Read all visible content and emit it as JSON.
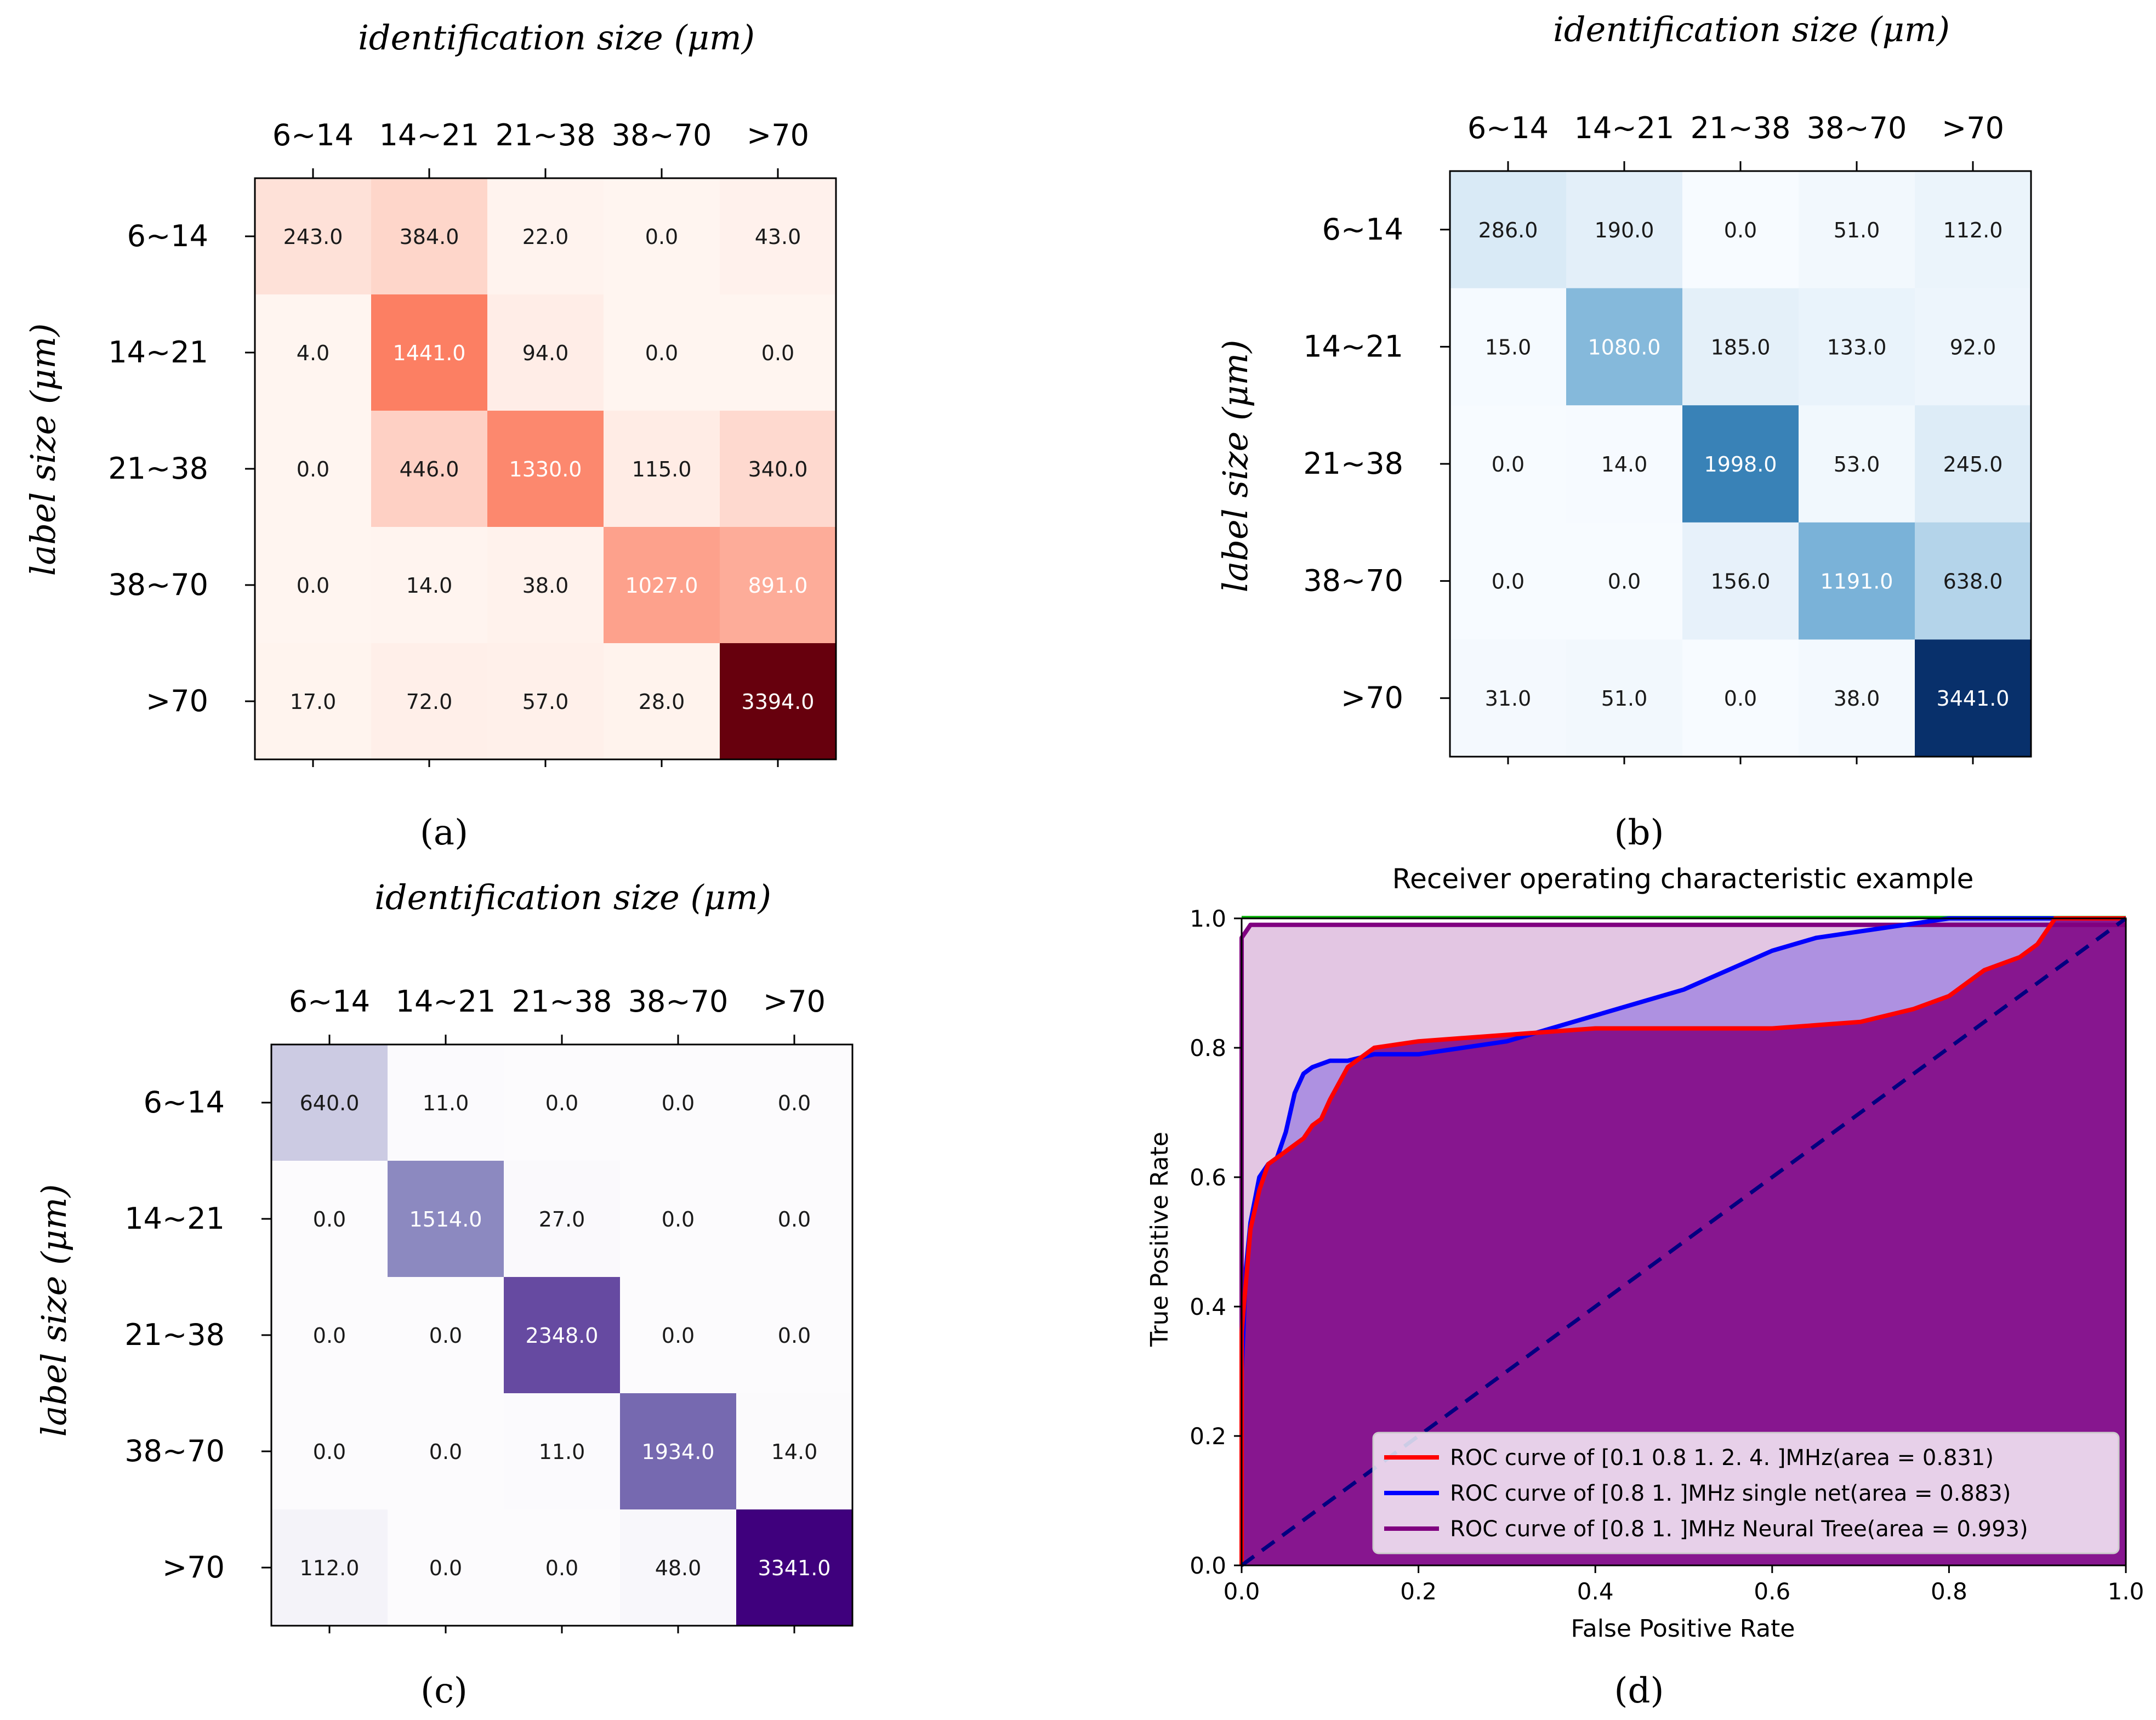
{
  "chart_data": [
    {
      "type": "heatmap",
      "panel_label": "(a)",
      "title": "identification size (μm)",
      "xlabel": "identification size (μm)",
      "ylabel": "label size (μm)",
      "categories": [
        "6~14",
        "14~21",
        "21~38",
        "38~70",
        ">70"
      ],
      "colormap": "Reds",
      "colors": {
        "low": "#fff5f0",
        "mid": "#fb6a4a",
        "high": "#67000d"
      },
      "matrix": [
        [
          243.0,
          384.0,
          22.0,
          0.0,
          43.0
        ],
        [
          4.0,
          1441.0,
          94.0,
          0.0,
          0.0
        ],
        [
          0.0,
          446.0,
          1330.0,
          115.0,
          340.0
        ],
        [
          0.0,
          14.0,
          38.0,
          1027.0,
          891.0
        ],
        [
          17.0,
          72.0,
          57.0,
          28.0,
          3394.0
        ]
      ],
      "cell_labels": [
        [
          "243.0",
          "384.0",
          "22.0",
          "0.0",
          "43.0"
        ],
        [
          "4.0",
          "1441.0",
          "94.0",
          "0.0",
          "0.0"
        ],
        [
          "0.0",
          "446.0",
          "1330.0",
          "115.0",
          "340.0"
        ],
        [
          "0.0",
          "14.0",
          "38.0",
          "1027.0",
          "891.0"
        ],
        [
          "17.0",
          "72.0",
          "57.0",
          "28.0",
          "3394.0"
        ]
      ]
    },
    {
      "type": "heatmap",
      "panel_label": "(b)",
      "title": "identification size (μm)",
      "xlabel": "identification size (μm)",
      "ylabel": "label size (μm)",
      "categories": [
        "6~14",
        "14~21",
        "21~38",
        "38~70",
        ">70"
      ],
      "colormap": "Blues",
      "colors": {
        "low": "#f7fbff",
        "mid": "#4292c6",
        "high": "#08306b"
      },
      "matrix": [
        [
          286.0,
          190.0,
          0.0,
          51.0,
          112.0
        ],
        [
          15.0,
          1080.0,
          185.0,
          133.0,
          92.0
        ],
        [
          0.0,
          14.0,
          1998.0,
          53.0,
          245.0
        ],
        [
          0.0,
          0.0,
          156.0,
          1191.0,
          638.0
        ],
        [
          31.0,
          51.0,
          0.0,
          38.0,
          3441.0
        ]
      ],
      "cell_labels": [
        [
          "286.0",
          "190.0",
          "0.0",
          "51.0",
          "112.0"
        ],
        [
          "15.0",
          "1080.0",
          "185.0",
          "133.0",
          "92.0"
        ],
        [
          "0.0",
          "14.0",
          "1998.0",
          "53.0",
          "245.0"
        ],
        [
          "0.0",
          "0.0",
          "156.0",
          "1191.0",
          "638.0"
        ],
        [
          "31.0",
          "51.0",
          "0.0",
          "38.0",
          "3441.0"
        ]
      ]
    },
    {
      "type": "heatmap",
      "panel_label": "(c)",
      "title": "identification size (μm)",
      "xlabel": "identification size (μm)",
      "ylabel": "label size (μm)",
      "categories": [
        "6~14",
        "14~21",
        "21~38",
        "38~70",
        ">70"
      ],
      "colormap": "Purples",
      "colors": {
        "low": "#fcfbfd",
        "mid": "#807dba",
        "high": "#3f007d"
      },
      "matrix": [
        [
          640.0,
          11.0,
          0.0,
          0.0,
          0.0
        ],
        [
          0.0,
          1514.0,
          27.0,
          0.0,
          0.0
        ],
        [
          0.0,
          0.0,
          2348.0,
          0.0,
          0.0
        ],
        [
          0.0,
          0.0,
          11.0,
          1934.0,
          14.0
        ],
        [
          112.0,
          0.0,
          0.0,
          48.0,
          3341.0
        ]
      ],
      "cell_labels": [
        [
          "640.0",
          "11.0",
          "0.0",
          "0.0",
          "0.0"
        ],
        [
          "0.0",
          "1514.0",
          "27.0",
          "0.0",
          "0.0"
        ],
        [
          "0.0",
          "0.0",
          "2348.0",
          "0.0",
          "0.0"
        ],
        [
          "0.0",
          "0.0",
          "11.0",
          "1934.0",
          "14.0"
        ],
        [
          "112.0",
          "0.0",
          "0.0",
          "48.0",
          "3341.0"
        ]
      ]
    },
    {
      "type": "line",
      "panel_label": "(d)",
      "title": "Receiver operating characteristic example",
      "xlabel": "False Positive Rate",
      "ylabel": "True Positive Rate",
      "xlim": [
        0.0,
        1.0
      ],
      "ylim": [
        0.0,
        1.0
      ],
      "xticks": [
        "0.0",
        "0.2",
        "0.4",
        "0.6",
        "0.8",
        "1.0"
      ],
      "yticks": [
        "0.0",
        "0.2",
        "0.4",
        "0.6",
        "0.8",
        "1.0"
      ],
      "legend_position": "lower-right",
      "series": [
        {
          "name": "ROC curve of [0.1 0.8 1.  2.  4. ]MHz(area = 0.831)",
          "color": "#ff0000",
          "fill": "#800080",
          "x": [
            0.0,
            0.0,
            0.005,
            0.01,
            0.02,
            0.03,
            0.04,
            0.05,
            0.06,
            0.07,
            0.08,
            0.09,
            0.1,
            0.12,
            0.15,
            0.2,
            0.3,
            0.4,
            0.5,
            0.6,
            0.7,
            0.76,
            0.8,
            0.84,
            0.88,
            0.9,
            0.91,
            0.92,
            1.0
          ],
          "y": [
            0.0,
            0.36,
            0.44,
            0.52,
            0.58,
            0.62,
            0.63,
            0.64,
            0.65,
            0.66,
            0.68,
            0.69,
            0.72,
            0.77,
            0.8,
            0.81,
            0.82,
            0.83,
            0.83,
            0.83,
            0.84,
            0.86,
            0.88,
            0.92,
            0.94,
            0.96,
            0.98,
            1.0,
            1.0
          ]
        },
        {
          "name": "ROC curve of [0.8 1.  ]MHz single net(area = 0.883)",
          "color": "#0000ff",
          "fill": "#8a6ee0",
          "x": [
            0.0,
            0.0,
            0.005,
            0.01,
            0.02,
            0.03,
            0.04,
            0.05,
            0.06,
            0.07,
            0.08,
            0.1,
            0.12,
            0.15,
            0.2,
            0.3,
            0.35,
            0.4,
            0.45,
            0.5,
            0.55,
            0.6,
            0.65,
            0.7,
            0.75,
            0.8,
            1.0
          ],
          "y": [
            0.0,
            0.3,
            0.46,
            0.53,
            0.6,
            0.62,
            0.63,
            0.67,
            0.73,
            0.76,
            0.77,
            0.78,
            0.78,
            0.79,
            0.79,
            0.81,
            0.83,
            0.85,
            0.87,
            0.89,
            0.92,
            0.95,
            0.97,
            0.98,
            0.99,
            1.0,
            1.0
          ]
        },
        {
          "name": "ROC curve of [0.8 1.  ]MHz Neural Tree(area = 0.993)",
          "color": "#800080",
          "fill": "#e0c0e0",
          "x": [
            0.0,
            0.0,
            0.005,
            0.01,
            0.02,
            1.0
          ],
          "y": [
            0.0,
            0.97,
            0.98,
            0.99,
            0.99,
            0.99
          ]
        }
      ],
      "reference_line": {
        "x": [
          0.0,
          1.0
        ],
        "y": [
          0.0,
          1.0
        ],
        "color": "#000080",
        "style": "dashed"
      },
      "top_line": {
        "y": 1.0,
        "color": "#00b000"
      }
    }
  ]
}
